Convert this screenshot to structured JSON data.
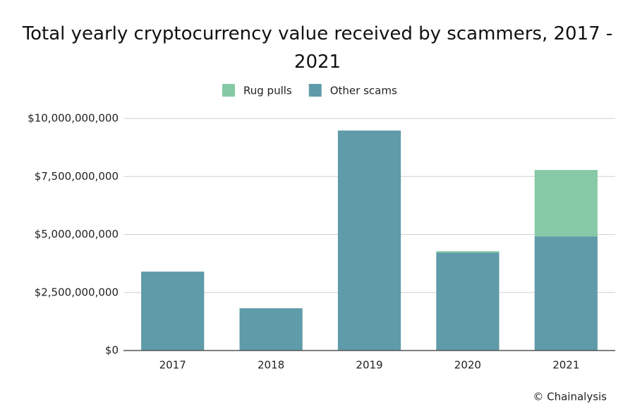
{
  "chart_data": {
    "type": "stacked_bar",
    "title": "Total yearly cryptocurrency value received by scammers, 2017 - 2021",
    "categories": [
      "2017",
      "2018",
      "2019",
      "2020",
      "2021"
    ],
    "series": [
      {
        "name": "Rug pulls",
        "color": "#86c9a6",
        "values": [
          0,
          0,
          0,
          60000000,
          2860000000
        ]
      },
      {
        "name": "Other scams",
        "color": "#5f9ba9",
        "values": [
          3400000000,
          1820000000,
          9480000000,
          4220000000,
          4920000000
        ]
      }
    ],
    "ylim": [
      0,
      10000000000
    ],
    "yticks": [
      {
        "value": 0,
        "label": "$0"
      },
      {
        "value": 2500000000,
        "label": "$2,500,000,000"
      },
      {
        "value": 5000000000,
        "label": "$5,000,000,000"
      },
      {
        "value": 7500000000,
        "label": "$7,500,000,000"
      },
      {
        "value": 10000000000,
        "label": "$10,000,000,000"
      }
    ],
    "grid": true,
    "legend": "top",
    "source": "© Chainalysis"
  }
}
